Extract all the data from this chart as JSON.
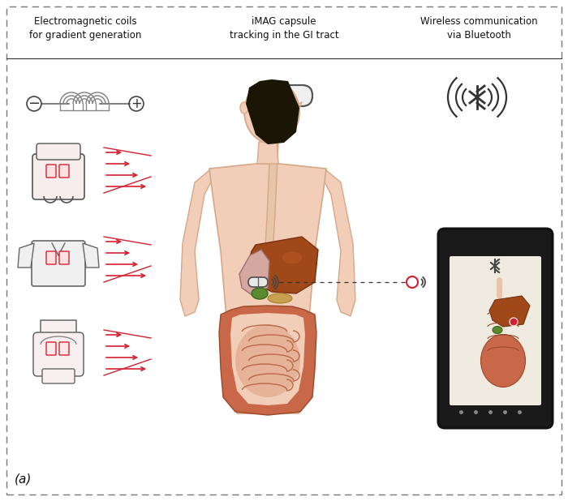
{
  "title_left": "Electromagnetic coils\nfor gradient generation",
  "title_center": "iMAG capsule\ntracking in the GI tract",
  "title_right": "Wireless communication\nvia Bluetooth",
  "label_a": "(a)",
  "bg_color": "#ffffff",
  "border_color": "#666666",
  "text_color": "#111111",
  "red_color": "#d42030",
  "gray_color": "#888888",
  "light_gray": "#cccccc",
  "skin_color": "#f2cdb8",
  "skin_edge": "#d4a888",
  "organ_brown": "#9b5020",
  "organ_liver": "#8b4010",
  "organ_green": "#5a8a30",
  "organ_yellow": "#c8a020",
  "organ_pink": "#d07060",
  "intestine_color": "#c86040",
  "phone_bg": "#1a1a1a",
  "phone_screen": "#f0ebe0",
  "hair_color": "#1a1505"
}
